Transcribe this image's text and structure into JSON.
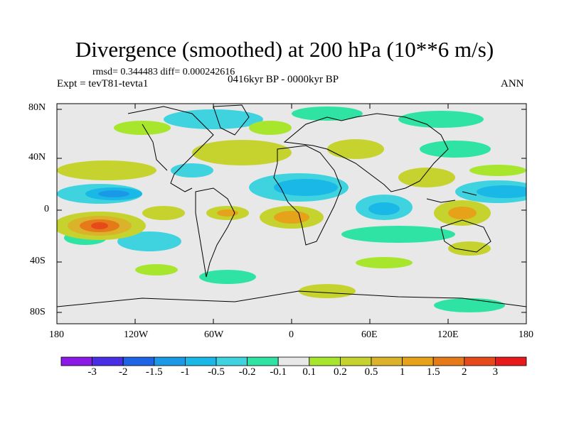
{
  "title": "Divergence (smoothed) at 200 hPa (10**6 m/s)",
  "stats": {
    "rmsd_label": "rmsd= 0.344483 diff= 0.000242616"
  },
  "experiment": "Expt = tevT81-tevta1",
  "period": "0416kyr BP - 0000kyr BP",
  "season": "ANN",
  "axes": {
    "lat_ticks": [
      "80N",
      "40N",
      "0",
      "40S",
      "80S"
    ],
    "lon_ticks": [
      "180",
      "120W",
      "60W",
      "0",
      "60E",
      "120E",
      "180"
    ]
  },
  "colorbar": {
    "colors": [
      "#8c1ae6",
      "#4a2ee6",
      "#1f63e6",
      "#1a9ae6",
      "#1ab8e6",
      "#3fd3e0",
      "#2ee3a4",
      "#e8e8e8",
      "#a8e62e",
      "#c6d32e",
      "#dab32a",
      "#e6a21a",
      "#e67a1a",
      "#e64a1a",
      "#e61a1a"
    ],
    "labels": [
      "-3",
      "-2",
      "-1.5",
      "-1",
      "-0.5",
      "-0.2",
      "-0.1",
      "0.1",
      "0.2",
      "0.5",
      "1",
      "1.5",
      "2",
      "3"
    ]
  }
}
